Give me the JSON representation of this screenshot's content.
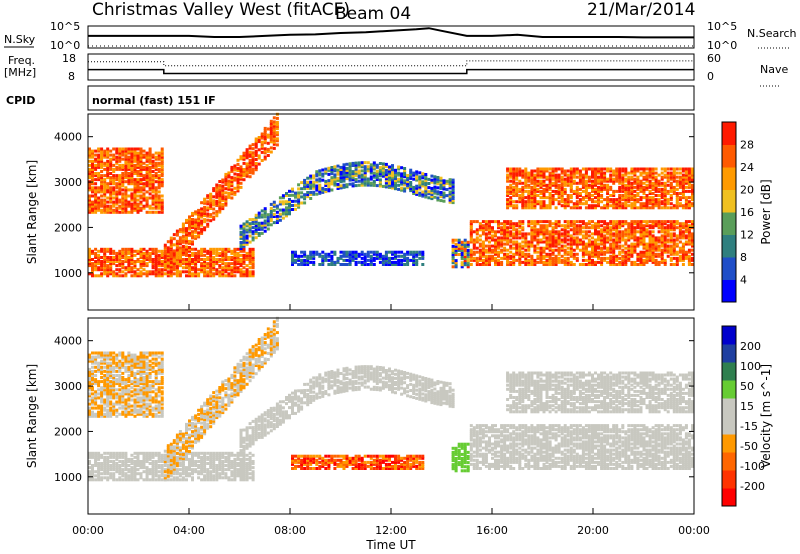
{
  "header": {
    "station": "Christmas Valley West (fitACF)",
    "beam": "Beam 04",
    "date": "21/Mar/2014"
  },
  "left_labels": {
    "nsky": "N.Sky",
    "freq_line1": "Freq.",
    "freq_line2": "[MHz]",
    "cpid": "CPID"
  },
  "right_labels": {
    "nsearch": "N.Search",
    "nave": "Nave"
  },
  "noise_panel": {
    "left_ticks": [
      "10^5",
      "10^0"
    ],
    "right_ticks": [
      "10^5",
      "10^0"
    ]
  },
  "freq_panel": {
    "left_ticks": [
      "18",
      "8"
    ],
    "right_ticks": [
      "60",
      "0"
    ]
  },
  "cpid_text": "normal (fast) 151 IF",
  "x_axis": {
    "label": "Time UT",
    "ticks": [
      "00:00",
      "04:00",
      "08:00",
      "12:00",
      "16:00",
      "20:00",
      "00:00"
    ]
  },
  "colors": {
    "power_scale": [
      "#0000ff",
      "#1f4ec8",
      "#2f7f7f",
      "#5a9e5a",
      "#f0c020",
      "#ff9a00",
      "#ff5a00",
      "#ff1a00"
    ],
    "velocity_scale": [
      "#ff0000",
      "#ff3300",
      "#ff6600",
      "#ff9900",
      "#c8c8c0",
      "#c8c8c0",
      "#66cc33",
      "#2f7f4f",
      "#1f3fa0",
      "#0000cc"
    ],
    "ground_scatter": "#c8c8c0"
  },
  "chart_data": [
    {
      "type": "line",
      "title": "N.Sky",
      "x_range_hours": [
        0,
        24
      ],
      "y_scale": "log",
      "ylim": [
        "10^0",
        "10^5"
      ],
      "series": [
        {
          "name": "N.Sky",
          "x": [
            0,
            1,
            2,
            3,
            4,
            5,
            6,
            7,
            8,
            9,
            10,
            11,
            12,
            13,
            13.5,
            14,
            15,
            16,
            17,
            18,
            19,
            20,
            21,
            22,
            23,
            24
          ],
          "level": [
            0.55,
            0.55,
            0.55,
            0.55,
            0.55,
            0.5,
            0.5,
            0.55,
            0.6,
            0.62,
            0.68,
            0.72,
            0.78,
            0.85,
            0.9,
            0.78,
            0.55,
            0.55,
            0.6,
            0.5,
            0.5,
            0.5,
            0.5,
            0.48,
            0.48,
            0.48
          ]
        }
      ]
    },
    {
      "type": "line",
      "title": "Freq.",
      "ylabel": "[MHz]",
      "ylim": [
        8,
        18
      ],
      "series": [
        {
          "name": "Freq.",
          "x": [
            0,
            3,
            3,
            15,
            15,
            24
          ],
          "y": [
            12,
            12,
            10.5,
            10.5,
            12,
            12
          ]
        },
        {
          "name": "Nave",
          "x": [
            0,
            3,
            3,
            15,
            15,
            24
          ],
          "y": [
            42,
            42,
            33,
            33,
            44,
            44
          ]
        }
      ]
    },
    {
      "type": "heatmap",
      "ylabel": "Slant Range [km]",
      "xlabel": "",
      "xlim": [
        0,
        24
      ],
      "ylim": [
        180,
        4500
      ],
      "yticks": [
        1000,
        2000,
        3000,
        4000
      ],
      "colorbar_label": "Power [dB]",
      "colorbar_ticks": [
        4,
        8,
        12,
        16,
        20,
        24,
        28
      ],
      "colorbar_range": [
        0,
        30
      ]
    },
    {
      "type": "heatmap",
      "ylabel": "Slant Range [km]",
      "xlabel": "Time UT",
      "xlim": [
        0,
        24
      ],
      "ylim": [
        180,
        4500
      ],
      "yticks": [
        1000,
        2000,
        3000,
        4000
      ],
      "colorbar_label": "Velocity [m s^-1]",
      "colorbar_ticks": [
        200,
        100,
        50,
        15,
        -15,
        -50,
        -100,
        -200
      ]
    }
  ]
}
